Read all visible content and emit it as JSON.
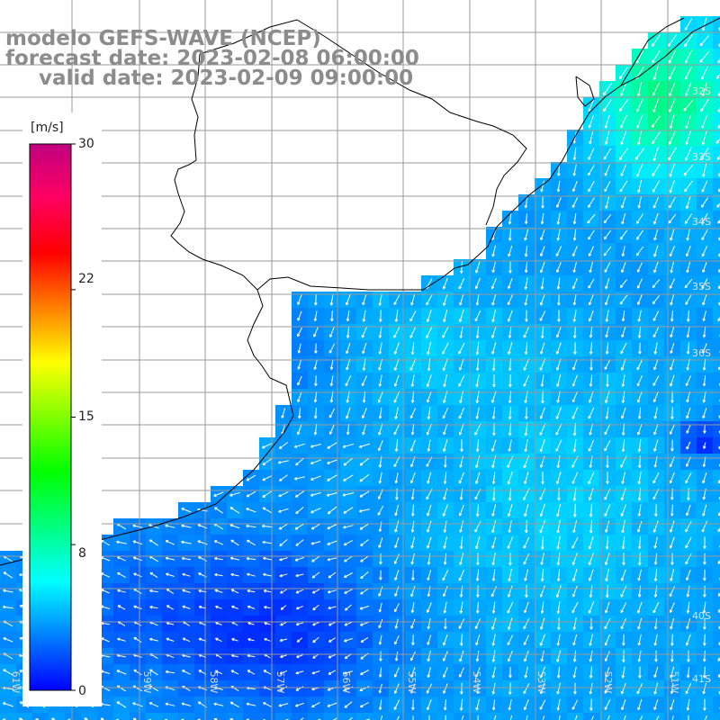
{
  "title": {
    "line1": "modelo GEFS-WAVE (NCEP)",
    "line2": "forecast date: 2023-02-08 06:00:00",
    "line3": "valid date: 2023-02-09 09:00:00"
  },
  "colorbar": {
    "unit": "[m/s]",
    "ticks": [
      "30",
      "22",
      "15",
      "8",
      "0"
    ],
    "tick_values": [
      30,
      22,
      15,
      8,
      0
    ],
    "range": [
      0,
      30
    ],
    "colors": [
      "#0000ff",
      "#0080ff",
      "#00ffff",
      "#00ff80",
      "#00ff00",
      "#80ff00",
      "#ffff00",
      "#ff8000",
      "#ff0000",
      "#ff0060",
      "#c00080"
    ]
  },
  "map": {
    "lat_labels": [
      "32S",
      "33S",
      "34S",
      "35S",
      "36S",
      "40S",
      "41S"
    ],
    "lon_labels": [
      "61W",
      "60W",
      "59W",
      "58W",
      "57W",
      "56W",
      "55W",
      "54W",
      "53W",
      "52W",
      "51W"
    ],
    "land_color": "#ffffff",
    "grid_color": "#9a9a9a",
    "coast_color": "#000000",
    "arrow_color": "#ffffff"
  }
}
